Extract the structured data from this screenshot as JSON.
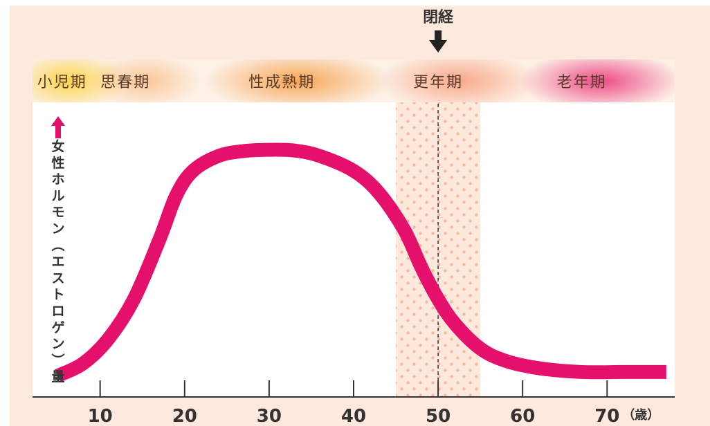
{
  "chart_data": {
    "type": "line",
    "ylabel": "女性ホルモン（エストロゲン）量",
    "x_unit": "（歳）",
    "xlim": [
      2,
      78
    ],
    "ylim": [
      0,
      100
    ],
    "x_ticks": [
      "10",
      "20",
      "30",
      "40",
      "50",
      "60",
      "70"
    ],
    "stages": [
      {
        "label": "小児期",
        "center": 5.5
      },
      {
        "label": "思春期",
        "center": 13
      },
      {
        "label": "性成熟期",
        "center": 31.5
      },
      {
        "label": "更年期",
        "center": 50
      },
      {
        "label": "老年期",
        "center": 67
      }
    ],
    "menopause": {
      "label": "閉経",
      "age": 50
    },
    "menopause_zone": [
      45,
      55
    ],
    "series": [
      {
        "color": "#e5106c",
        "points": [
          [
            5,
            3
          ],
          [
            8,
            8
          ],
          [
            11,
            18
          ],
          [
            14,
            34
          ],
          [
            17,
            58
          ],
          [
            19,
            76
          ],
          [
            21,
            86
          ],
          [
            24,
            92
          ],
          [
            27,
            94
          ],
          [
            30,
            94.5
          ],
          [
            33,
            94.2
          ],
          [
            36,
            92
          ],
          [
            40,
            86
          ],
          [
            43,
            77
          ],
          [
            46,
            62
          ],
          [
            48,
            47
          ],
          [
            50,
            34
          ],
          [
            52,
            24
          ],
          [
            55,
            14
          ],
          [
            58,
            9
          ],
          [
            62,
            6
          ],
          [
            67,
            4.5
          ],
          [
            72,
            4.5
          ],
          [
            77,
            4.5
          ]
        ]
      }
    ]
  },
  "colors": {
    "background": "#fde9dd",
    "stage_band": "#fdf0e6",
    "curve": "#e5106c",
    "zone_dots": "#f5b9a1",
    "axis": "#333333",
    "top_arrow": "#222222"
  }
}
